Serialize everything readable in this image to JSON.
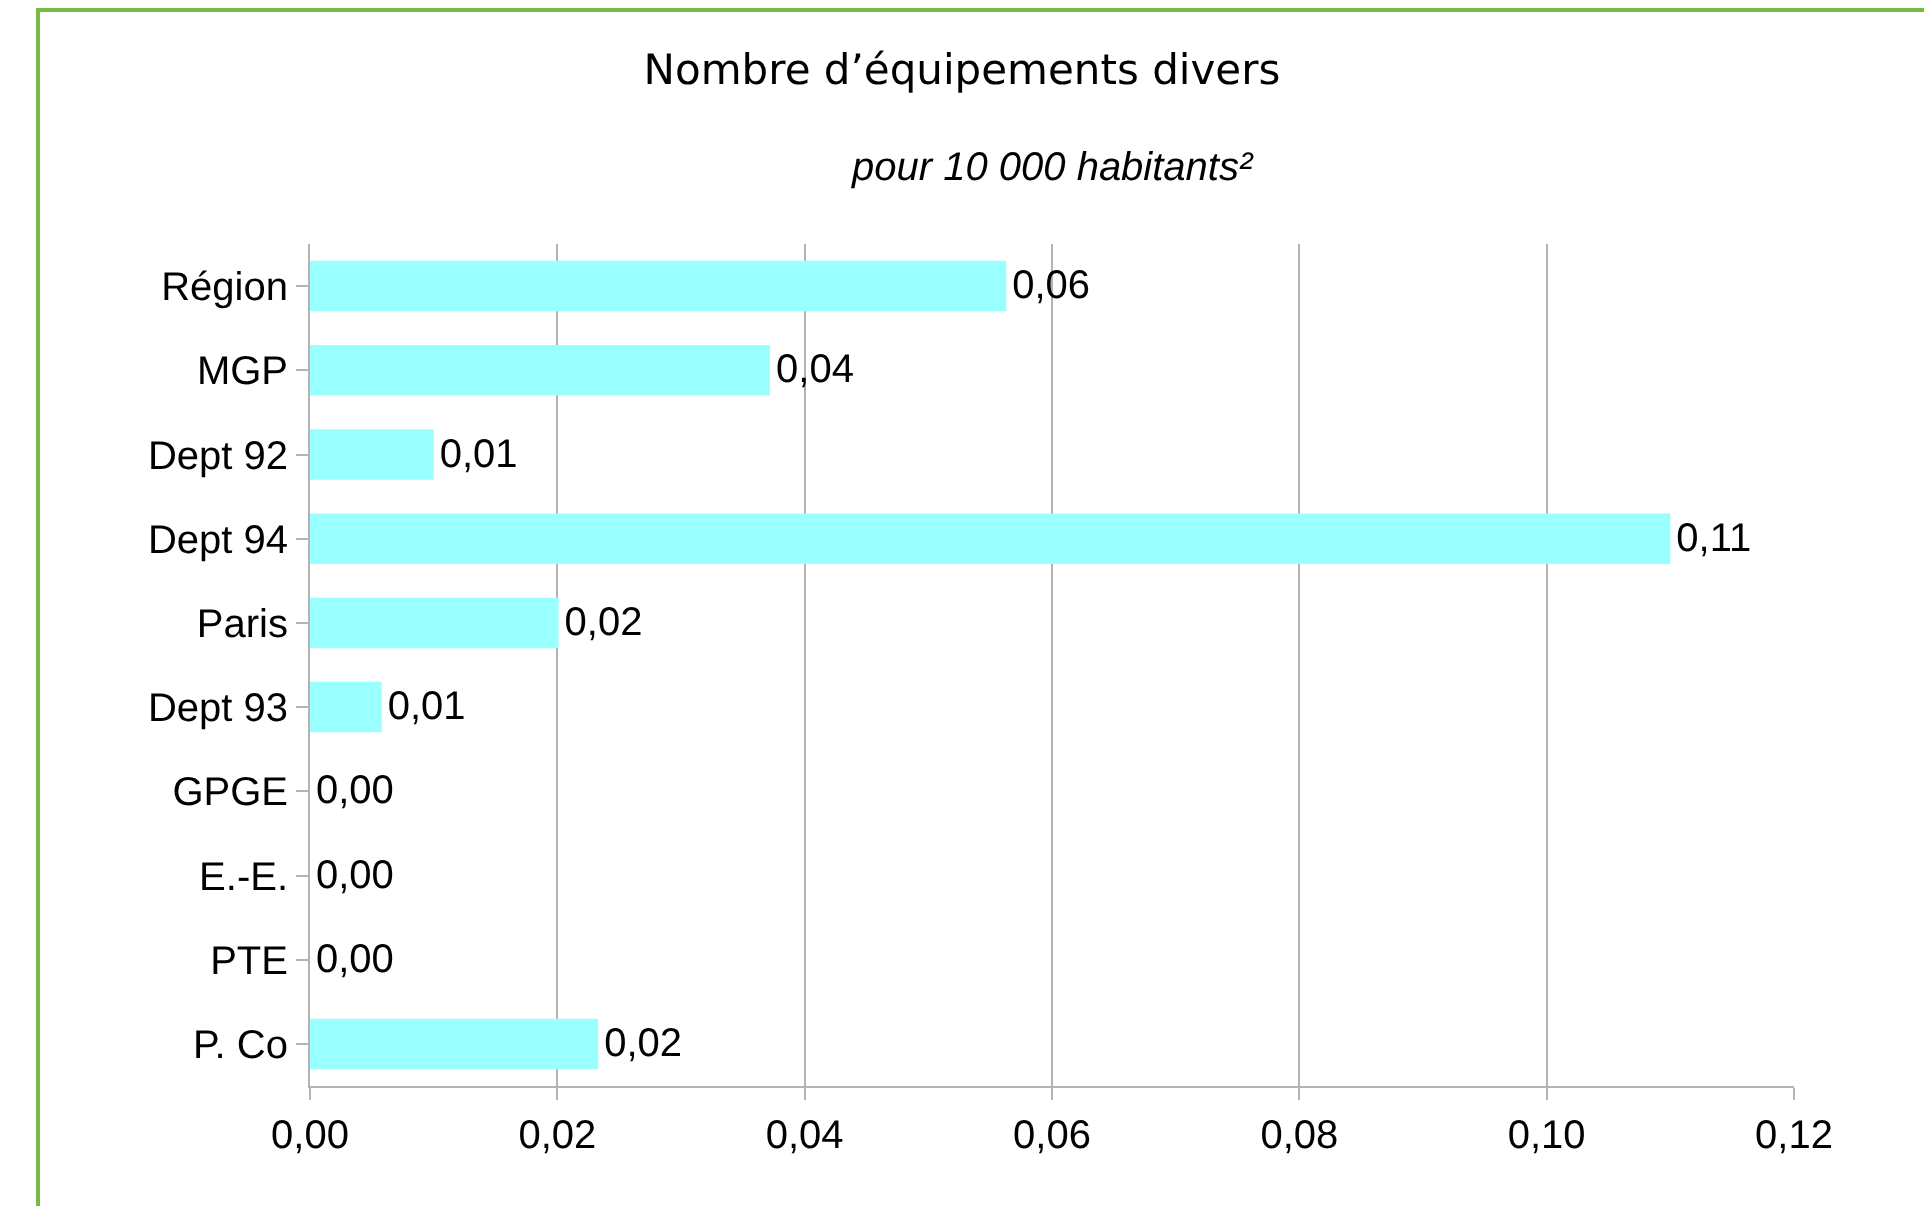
{
  "chart_data": {
    "type": "bar",
    "orientation": "horizontal",
    "title": "Nombre d’équipements divers",
    "subtitle": "pour 10 000 habitants²",
    "categories": [
      "Région",
      "MGP",
      "Dept 92",
      "Dept 94",
      "Paris",
      "Dept 93",
      "GPGE",
      "E.-E.",
      "PTE",
      "P. Co"
    ],
    "values": [
      0.0563,
      0.0372,
      0.01,
      0.11,
      0.0201,
      0.0058,
      0,
      0,
      0,
      0.0233
    ],
    "value_labels": [
      "0,06",
      "0,04",
      "0,01",
      "0,11",
      "0,02",
      "0,01",
      "0,00",
      "0,00",
      "0,00",
      "0,02"
    ],
    "color": "#99ffff",
    "xlim": [
      0,
      0.12
    ],
    "xticks": [
      {
        "value": 0,
        "label": "0,00"
      },
      {
        "value": 0.02,
        "label": "0,02"
      },
      {
        "value": 0.04,
        "label": "0,04"
      },
      {
        "value": 0.06,
        "label": "0,06"
      },
      {
        "value": 0.08,
        "label": "0,08"
      },
      {
        "value": 0.1,
        "label": "0,10"
      },
      {
        "value": 0.12,
        "label": "0,12"
      }
    ],
    "grid": "x"
  }
}
